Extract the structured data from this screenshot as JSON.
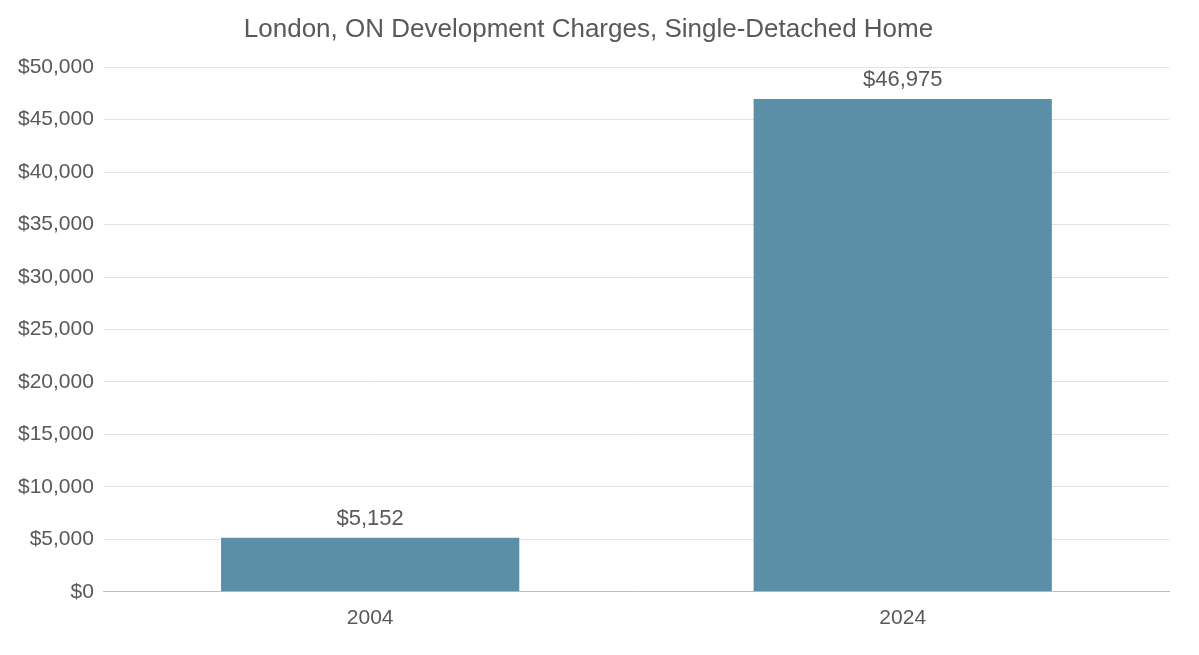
{
  "chart_data": {
    "type": "bar",
    "title": "London, ON Development Charges, Single-Detached Home",
    "categories": [
      "2004",
      "2024"
    ],
    "values": [
      5152,
      46975
    ],
    "value_labels": [
      "$5,152",
      "$46,975"
    ],
    "data_labels": true,
    "color": "#5b8fa8",
    "ylim": [
      0,
      50000
    ],
    "yticks": [
      {
        "value": 0,
        "label": "$0"
      },
      {
        "value": 5000,
        "label": "$5,000"
      },
      {
        "value": 10000,
        "label": "$10,000"
      },
      {
        "value": 15000,
        "label": "$15,000"
      },
      {
        "value": 20000,
        "label": "$20,000"
      },
      {
        "value": 25000,
        "label": "$25,000"
      },
      {
        "value": 30000,
        "label": "$30,000"
      },
      {
        "value": 35000,
        "label": "$35,000"
      },
      {
        "value": 40000,
        "label": "$40,000"
      },
      {
        "value": 45000,
        "label": "$45,000"
      },
      {
        "value": 50000,
        "label": "$50,000"
      }
    ],
    "grid": true
  }
}
